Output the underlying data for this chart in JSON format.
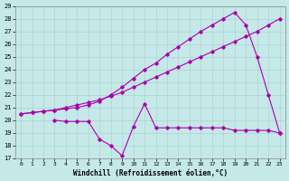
{
  "xlabel": "Windchill (Refroidissement éolien,°C)",
  "background_color": "#c5e8e8",
  "line_color": "#aa00aa",
  "grid_color": "#aacccc",
  "ylim": [
    17,
    29
  ],
  "xlim": [
    -0.5,
    23.5
  ],
  "yticks": [
    17,
    18,
    19,
    20,
    21,
    22,
    23,
    24,
    25,
    26,
    27,
    28,
    29
  ],
  "xticks": [
    0,
    1,
    2,
    3,
    4,
    5,
    6,
    7,
    8,
    9,
    10,
    11,
    12,
    13,
    14,
    15,
    16,
    17,
    18,
    19,
    20,
    21,
    22,
    23
  ],
  "line1_x": [
    0,
    1,
    2,
    3,
    4,
    5,
    6,
    7,
    8,
    9,
    10,
    11,
    12,
    13,
    14,
    15,
    16,
    17,
    18,
    19,
    20,
    21,
    22,
    23
  ],
  "line1_y": [
    20.5,
    20.6,
    20.7,
    20.8,
    21.0,
    21.2,
    21.4,
    21.6,
    21.9,
    22.2,
    22.6,
    23.0,
    23.4,
    23.8,
    24.2,
    24.6,
    25.0,
    25.4,
    25.8,
    26.2,
    26.6,
    27.0,
    27.5,
    28.0
  ],
  "line2_x": [
    0,
    1,
    2,
    3,
    4,
    5,
    6,
    7,
    8,
    9,
    10,
    11,
    12,
    13,
    14,
    15,
    16,
    17,
    18,
    19,
    20,
    21,
    22,
    23
  ],
  "line2_y": [
    20.5,
    20.6,
    20.7,
    20.8,
    20.9,
    21.0,
    21.2,
    21.5,
    22.0,
    22.6,
    23.3,
    24.0,
    24.5,
    25.2,
    25.8,
    26.4,
    27.0,
    27.5,
    28.0,
    28.5,
    27.5,
    25.0,
    22.0,
    19.0
  ],
  "line3_x": [
    3,
    4,
    5,
    6,
    7,
    8,
    9,
    10,
    11,
    12,
    13,
    14,
    15,
    16,
    17,
    18,
    19,
    20,
    21,
    22,
    23
  ],
  "line3_y": [
    20.0,
    19.9,
    19.9,
    19.9,
    18.5,
    18.0,
    17.2,
    19.5,
    21.3,
    19.4,
    19.4,
    19.4,
    19.4,
    19.4,
    19.4,
    19.4,
    19.2,
    19.2,
    19.2,
    19.2,
    19.0
  ]
}
